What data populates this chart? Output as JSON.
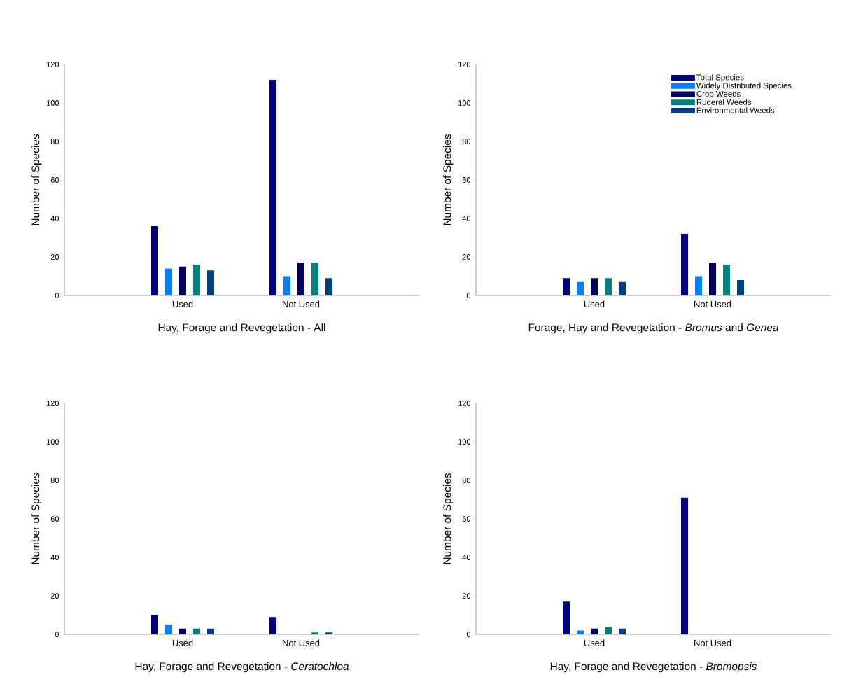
{
  "chart_data": [
    {
      "type": "bar",
      "xlabel": "Hay, Forage and Revegetation - All",
      "ylabel": "Number of Species",
      "categories": [
        "Used",
        "Not Used"
      ],
      "ylim": [
        0,
        120
      ],
      "yticks": [
        0,
        20,
        40,
        60,
        80,
        100,
        120
      ],
      "legend": false,
      "series": [
        {
          "color": "#000080",
          "values": [
            36,
            112
          ]
        },
        {
          "color": "#0080ff",
          "values": [
            14,
            10
          ]
        },
        {
          "color": "#00005e",
          "values": [
            15,
            17
          ]
        },
        {
          "color": "#008080",
          "values": [
            16,
            17
          ]
        },
        {
          "color": "#004080",
          "values": [
            13,
            9
          ]
        }
      ]
    },
    {
      "type": "bar",
      "xlabel": "Forage, Hay and Revegetation - *Bromus* and *Genea*",
      "ylabel": "Number of Species",
      "categories": [
        "Used",
        "Not Used"
      ],
      "ylim": [
        0,
        120
      ],
      "yticks": [
        0,
        20,
        40,
        60,
        80,
        100,
        120
      ],
      "legend": "top right",
      "series": [
        {
          "name": "Total Species",
          "color": "#000080",
          "values": [
            9,
            32
          ]
        },
        {
          "name": "Widely Distributed Species",
          "color": "#0080ff",
          "values": [
            7,
            10
          ]
        },
        {
          "name": "Crop Weeds",
          "color": "#00005e",
          "values": [
            9,
            17
          ]
        },
        {
          "name": "Ruderal Weeds",
          "color": "#008080",
          "values": [
            9,
            16
          ]
        },
        {
          "name": "Environmental Weeds",
          "color": "#004080",
          "values": [
            7,
            8
          ]
        }
      ]
    },
    {
      "type": "bar",
      "xlabel": "Hay, Forage and Revegetation - *Ceratochloa*",
      "ylabel": "Number of Species",
      "categories": [
        "Used",
        "Not Used"
      ],
      "ylim": [
        0,
        120
      ],
      "yticks": [
        0,
        20,
        40,
        60,
        80,
        100,
        120
      ],
      "legend": false,
      "series": [
        {
          "color": "#000080",
          "values": [
            10,
            9
          ]
        },
        {
          "color": "#0080ff",
          "values": [
            5,
            0
          ]
        },
        {
          "color": "#00005e",
          "values": [
            3,
            0
          ]
        },
        {
          "color": "#008080",
          "values": [
            3,
            1
          ]
        },
        {
          "color": "#004080",
          "values": [
            3,
            1
          ]
        }
      ]
    },
    {
      "type": "bar",
      "xlabel": "Hay, Forage and Revegetation - *Bromopsis*",
      "ylabel": "Number of Species",
      "categories": [
        "Used",
        "Not Used"
      ],
      "ylim": [
        0,
        120
      ],
      "yticks": [
        0,
        20,
        40,
        60,
        80,
        100,
        120
      ],
      "legend": false,
      "series": [
        {
          "color": "#000080",
          "values": [
            17,
            71
          ]
        },
        {
          "color": "#0080ff",
          "values": [
            2,
            0
          ]
        },
        {
          "color": "#00005e",
          "values": [
            3,
            0
          ]
        },
        {
          "color": "#008080",
          "values": [
            4,
            0
          ]
        },
        {
          "color": "#004080",
          "values": [
            3,
            0
          ]
        }
      ]
    }
  ]
}
